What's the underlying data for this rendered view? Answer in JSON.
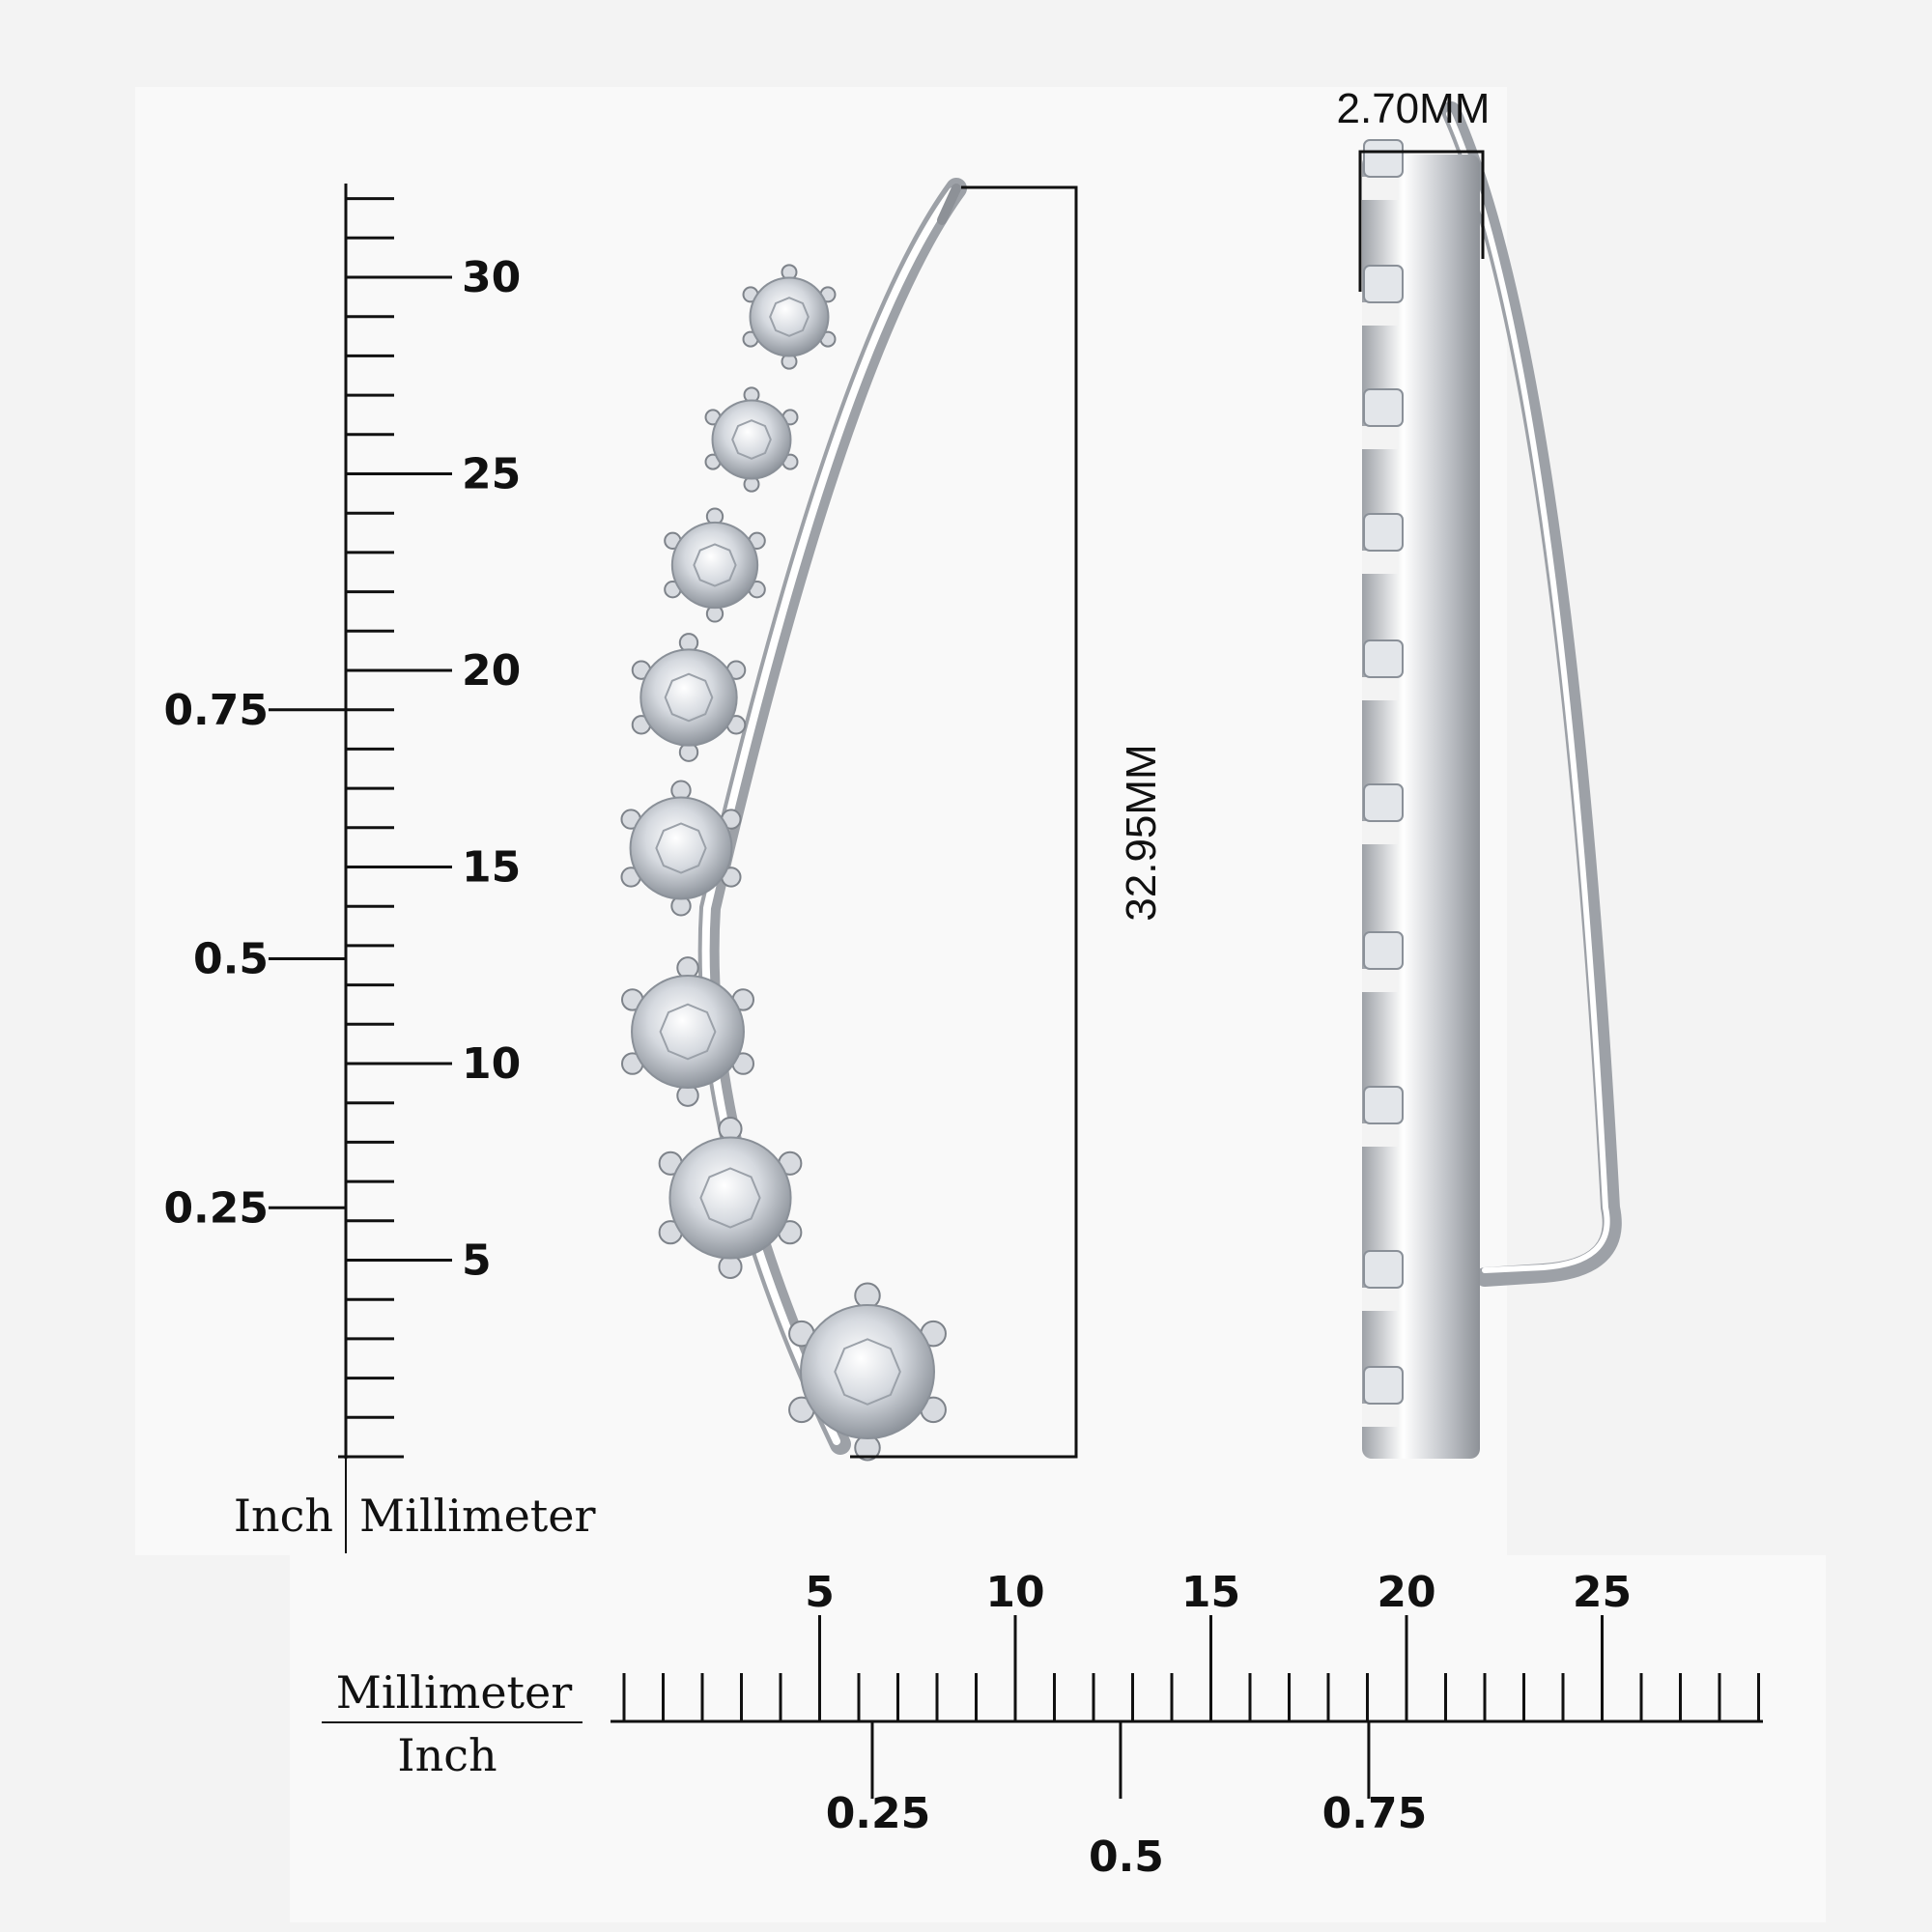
{
  "colors": {
    "background": "#f3f3f3",
    "panel": "#f9f9f9",
    "ink": "#111111",
    "metal": "#c9ccd1",
    "metal_highlight": "#ffffff",
    "stone": "#dfe3e8"
  },
  "vertical_ruler": {
    "unit_left": "Inch",
    "unit_right": "Millimeter",
    "mm_labels": [
      "30",
      "25",
      "20",
      "15",
      "10",
      "5"
    ],
    "inch_labels": [
      "0.75",
      "0.5",
      "0.25"
    ]
  },
  "horizontal_ruler": {
    "unit_top": "Millimeter",
    "unit_bottom": "Inch",
    "mm_labels": [
      "5",
      "10",
      "15",
      "20",
      "25"
    ],
    "inch_labels": [
      "0.25",
      "0.5",
      "0.75"
    ]
  },
  "dimensions": {
    "height_label": "32.95MM",
    "width_label": "2.70MM"
  },
  "product": {
    "icon": "ear-climber-earring-icon",
    "stone_count": 8
  }
}
